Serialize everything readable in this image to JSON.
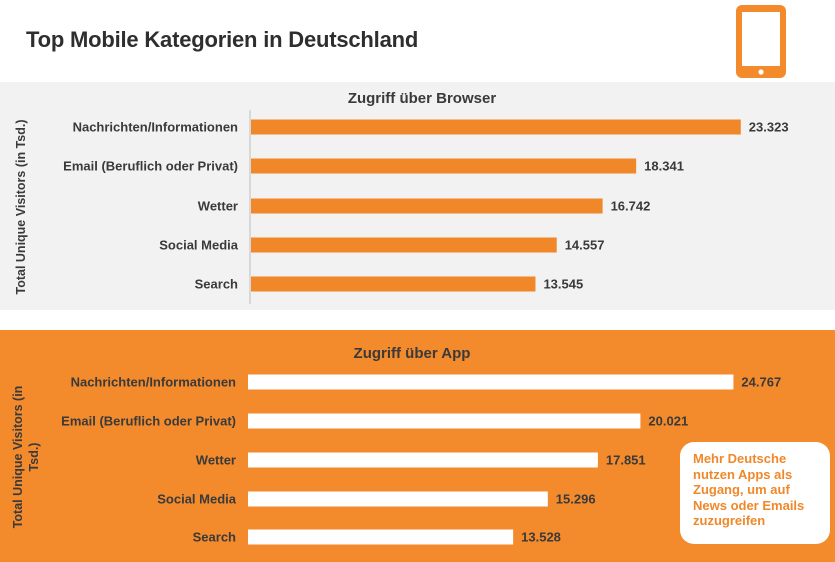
{
  "title": "Top Mobile Kategorien in Deutschland",
  "colors": {
    "accent": "#f38a2c",
    "browser_bg": "#f2f2f2",
    "browser_bar": "#f0882a",
    "app_bar": "#ffffff",
    "text_dark": "#2e2e2e",
    "text_panel": "#3a3a3a"
  },
  "header_icon": "tablet-icon",
  "callout": "Mehr Deutsche nutzen Apps als Zugang, um auf News oder Emails zuzugreifen",
  "chart_data": [
    {
      "type": "bar",
      "orientation": "horizontal",
      "title": "Zugriff über Browser",
      "ylabel": "Total Unique Visitors (in Tsd.)",
      "categories": [
        "Nachrichten/Informationen",
        "Email (Beruflich oder Privat)",
        "Wetter",
        "Social Media",
        "Search"
      ],
      "values": [
        23323,
        18341,
        16742,
        14557,
        13545
      ],
      "value_labels": [
        "23.323",
        "18.341",
        "16.742",
        "14.557",
        "13.545"
      ],
      "xlim": [
        0,
        25000
      ],
      "grid": false
    },
    {
      "type": "bar",
      "orientation": "horizontal",
      "title": "Zugriff über App",
      "ylabel": "Total Unique Visitors (in Tsd.)",
      "categories": [
        "Nachrichten/Informationen",
        "Email (Beruflich oder Privat)",
        "Wetter",
        "Social Media",
        "Search"
      ],
      "values": [
        24767,
        20021,
        17851,
        15296,
        13528
      ],
      "value_labels": [
        "24.767",
        "20.021",
        "17.851",
        "15.296",
        "13.528"
      ],
      "xlim": [
        0,
        25000
      ],
      "grid": false
    }
  ]
}
